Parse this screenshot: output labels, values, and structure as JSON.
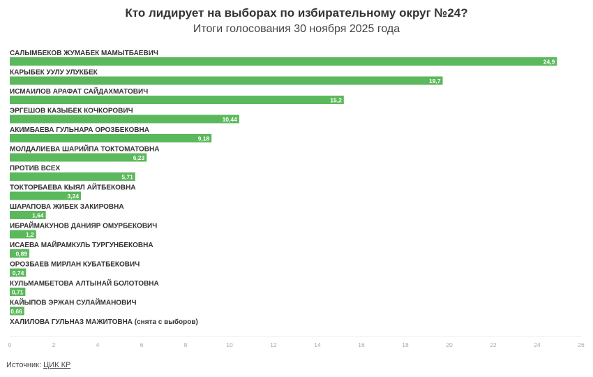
{
  "chart_data": {
    "type": "bar",
    "orientation": "horizontal",
    "title": "Кто лидирует на выборах по избирательному округ №24?",
    "subtitle": "Итоги голосования 30 ноября 2025 года",
    "categories": [
      "САЛЫМБЕКОВ ЖУМАБЕК МАМЫТБАЕВИЧ",
      "КАРЫБЕК УУЛУ УЛУКБЕК",
      "ИСМАИЛОВ АРАФАТ САЙДАХМАТОВИЧ",
      "ЭРГЕШОВ КАЗЫБЕК КОЧКОРОВИЧ",
      "АКИМБАЕВА ГУЛЬНАРА ОРОЗБЕКОВНА",
      "МОЛДАЛИЕВА ШАРИЙПА ТОКТОМАТОВНА",
      "ПРОТИВ ВСЕХ",
      "ТОКТОРБАЕВА КЫЯЛ АЙТБЕКОВНА",
      "ШАРАПОВА ЖИБЕК ЗАКИРОВНА",
      "ИБРАЙМАКУНОВ ДАНИЯР ОМУРБЕКОВИЧ",
      "ИСАЕВА МАЙРАМКУЛЬ ТУРГУНБЕКОВНА",
      "ОРОЗБАЕВ МИРЛАН КУБАТБЕКОВИЧ",
      "КУЛЬМАМБЕТОВА АЛТЫНАЙ БОЛОТОВНА",
      "КАЙЫПОВ ЭРЖАН СУЛАЙМАНОВИЧ",
      "ХАЛИЛОВА ГУЛЬНАЗ МАЖИТОВНА (снята с выборов)"
    ],
    "values": [
      24.9,
      19.7,
      15.2,
      10.44,
      9.18,
      6.23,
      5.71,
      3.24,
      1.64,
      1.2,
      0.89,
      0.74,
      0.71,
      0.66,
      null
    ],
    "value_labels": [
      "24,9",
      "19,7",
      "15,2",
      "10,44",
      "9,18",
      "6,23",
      "5,71",
      "3,24",
      "1,64",
      "1,2",
      "0,89",
      "0,74",
      "0,71",
      "0,66",
      ""
    ],
    "xlim": [
      0,
      26
    ],
    "xticks": [
      0,
      2,
      4,
      6,
      8,
      10,
      12,
      14,
      16,
      18,
      20,
      22,
      24,
      26
    ],
    "grid": false,
    "bar_color": "#5cb85c"
  },
  "source": {
    "label": "Источник:",
    "link": "ЦИК КР"
  }
}
